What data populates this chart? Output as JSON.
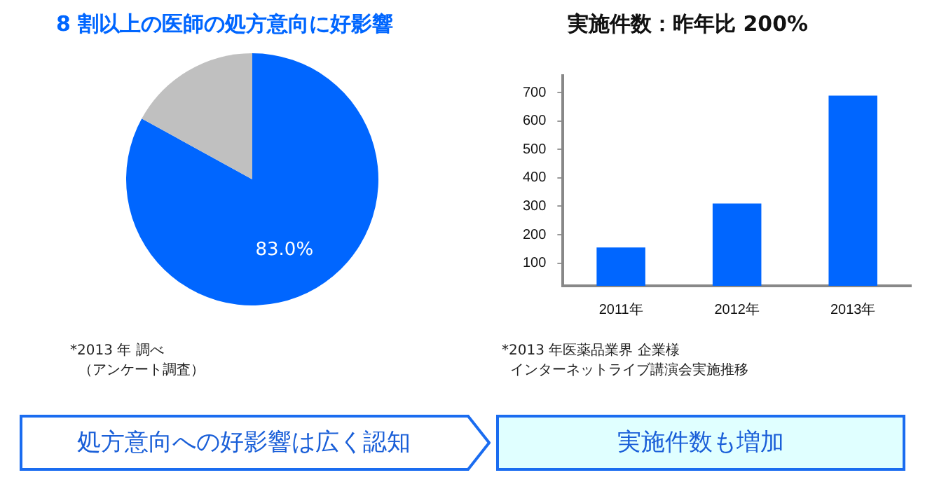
{
  "chart_data": [
    {
      "type": "pie",
      "title": "8 割以上の医師の処方意向に好影響",
      "categories": [
        null,
        null
      ],
      "values": [
        83.0,
        17.0
      ],
      "colors": [
        "#0066ff",
        "#c0c0c0"
      ],
      "value_labels": [
        "83.0%",
        null
      ],
      "legend": false,
      "annotations": [
        "*2013 年 調べ",
        "（アンケート調査）",
        "処方意向への好影響は広く認知"
      ]
    },
    {
      "type": "bar",
      "title": "実施件数：昨年比 200%",
      "categories": [
        "2011年",
        "2012年",
        "2013年"
      ],
      "values": [
        155,
        310,
        690
      ],
      "color": "#0066ff",
      "ylim": [
        20,
        760
      ],
      "yticks": [
        100,
        200,
        300,
        400,
        500,
        600,
        700
      ],
      "grid": false,
      "legend": false,
      "annotations": [
        "*2013 年医薬品業界 企業様",
        "インターネットライブ講演会実施推移",
        "実施件数も増加"
      ]
    }
  ]
}
